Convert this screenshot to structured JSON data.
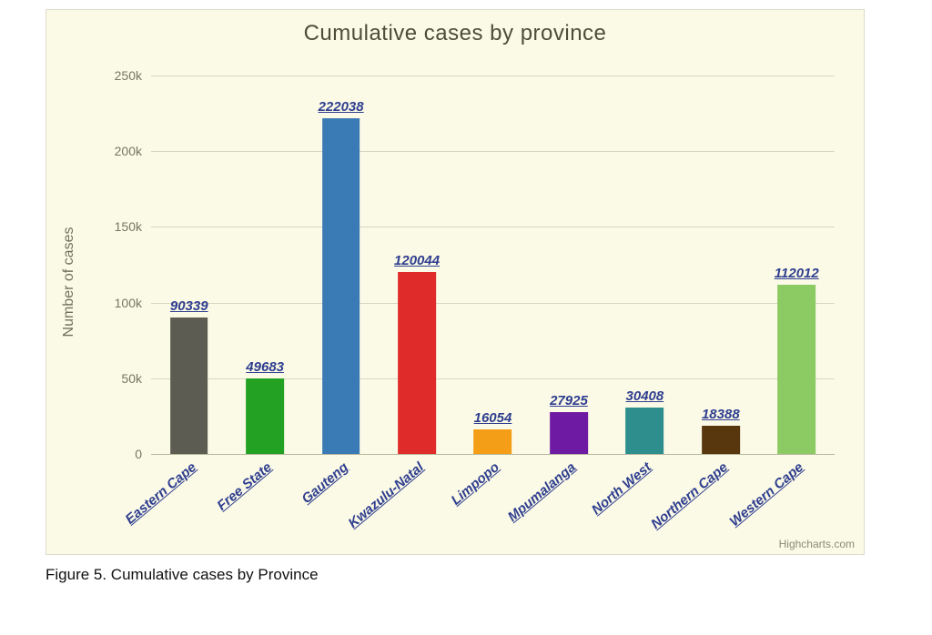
{
  "figure_caption": "Figure 5. Cumulative cases by Province",
  "chart": {
    "type": "bar",
    "title": "Cumulative cases by province",
    "title_color": "#4d4d3b",
    "title_fontsize": 24,
    "background_color": "#fbfae6",
    "frame_border_color": "#dcdccc",
    "credits": "Highcharts.com",
    "y_axis": {
      "title": "Number of cases",
      "title_color": "#72725c",
      "title_fontsize": 16,
      "min": 0,
      "max": 250000,
      "ticks": [
        {
          "value": 0,
          "label": "0"
        },
        {
          "value": 50000,
          "label": "50k"
        },
        {
          "value": 100000,
          "label": "100k"
        },
        {
          "value": 150000,
          "label": "150k"
        },
        {
          "value": 200000,
          "label": "200k"
        },
        {
          "value": 250000,
          "label": "250k"
        }
      ],
      "tick_label_color": "#777760",
      "tick_label_fontsize": 14,
      "gridline_major_color": "#d7d7c1",
      "gridline_zero_color": "#b8b89d"
    },
    "x_axis": {
      "label_style": {
        "color": "#2f3e8f",
        "fontsize": 15,
        "bold": true,
        "italic": true,
        "underline": true,
        "rotation_deg": -40
      }
    },
    "series": {
      "bar_width_fraction": 0.5,
      "data_label_style": {
        "color": "#2f3e8f",
        "fontsize": 15,
        "bold": true,
        "italic": true,
        "underline": true
      },
      "points": [
        {
          "category": "Eastern Cape",
          "value": 90339,
          "label": "90339",
          "color": "#5c5c52"
        },
        {
          "category": "Free State",
          "value": 49683,
          "label": "49683",
          "color": "#22a122"
        },
        {
          "category": "Gauteng",
          "value": 222038,
          "label": "222038",
          "color": "#3a7ab5"
        },
        {
          "category": "Kwazulu-Natal",
          "value": 120044,
          "label": "120044",
          "color": "#df2b29"
        },
        {
          "category": "Limpopo",
          "value": 16054,
          "label": "16054",
          "color": "#f49e17"
        },
        {
          "category": "Mpumalanga",
          "value": 27925,
          "label": "27925",
          "color": "#6f1aa3"
        },
        {
          "category": "North West",
          "value": 30408,
          "label": "30408",
          "color": "#2e8e8e"
        },
        {
          "category": "Northern Cape",
          "value": 18388,
          "label": "18388",
          "color": "#58360e"
        },
        {
          "category": "Western Cape",
          "value": 112012,
          "label": "112012",
          "color": "#8cca63"
        }
      ]
    }
  }
}
